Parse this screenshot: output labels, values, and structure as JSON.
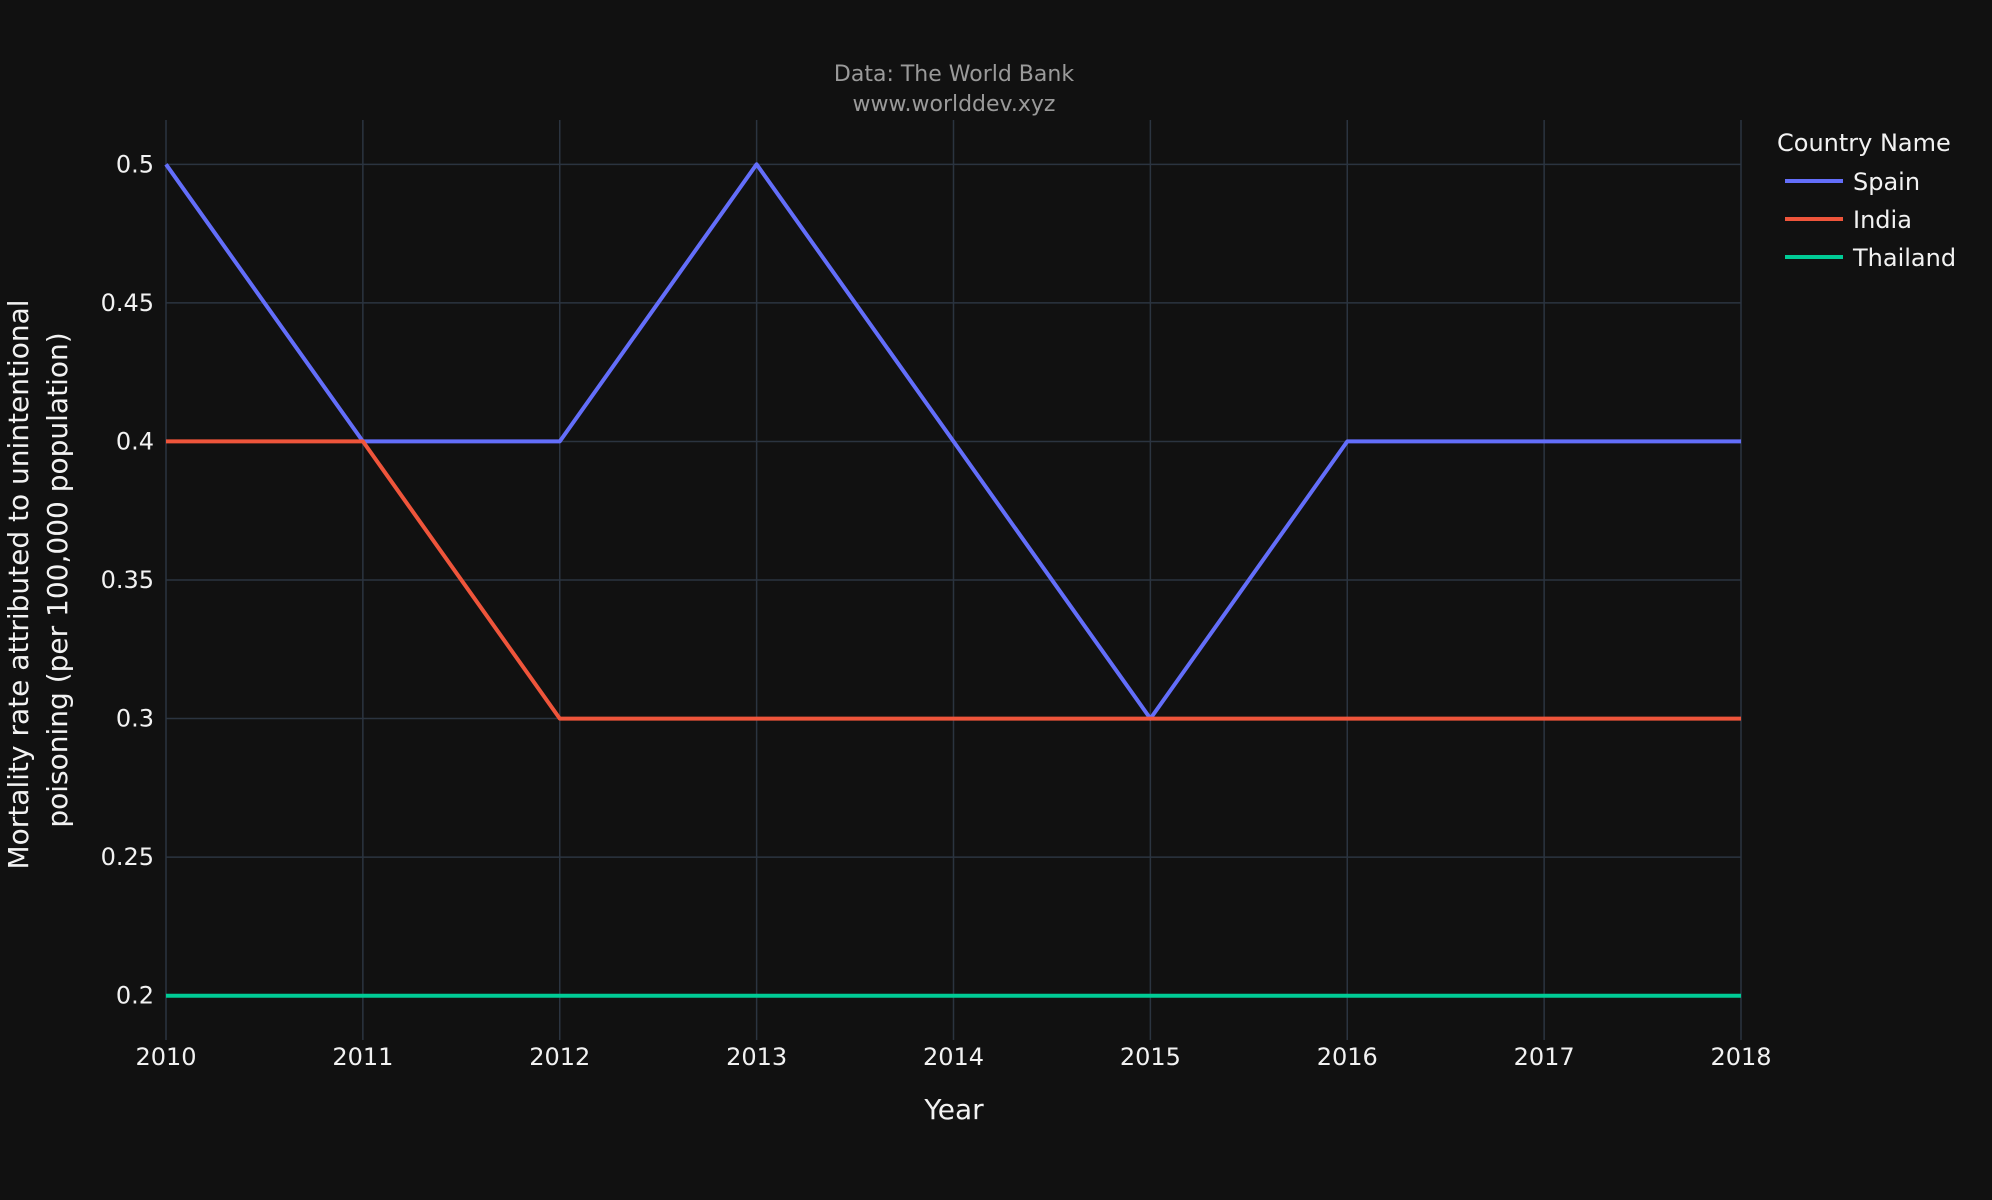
{
  "source": {
    "line1": "Data: The World Bank",
    "line2": "www.worlddev.xyz"
  },
  "chart_data": {
    "type": "line",
    "xlabel": "Year",
    "ylabel_lines": [
      "Mortality rate attributed to unintentional",
      "poisoning (per 100,000 population)"
    ],
    "x": [
      2010,
      2011,
      2012,
      2013,
      2014,
      2015,
      2016,
      2017,
      2018
    ],
    "x_ticks": [
      "2010",
      "2011",
      "2012",
      "2013",
      "2014",
      "2015",
      "2016",
      "2017",
      "2018"
    ],
    "y_ticks": [
      "0.2",
      "0.25",
      "0.3",
      "0.35",
      "0.4",
      "0.45",
      "0.5"
    ],
    "y_tick_values": [
      0.2,
      0.25,
      0.3,
      0.35,
      0.4,
      0.45,
      0.5
    ],
    "xlim": [
      2010,
      2018
    ],
    "ylim": [
      0.184,
      0.516
    ],
    "grid": true,
    "legend_title": "Country Name",
    "legend_position": "top-right, outside plot",
    "series": [
      {
        "name": "Spain",
        "color": "#636efa",
        "values": [
          0.5,
          0.4,
          0.4,
          0.5,
          0.4,
          0.3,
          0.4,
          0.4,
          0.4
        ]
      },
      {
        "name": "India",
        "color": "#ef553b",
        "values": [
          0.4,
          0.4,
          0.3,
          0.3,
          0.3,
          0.3,
          0.3,
          0.3,
          0.3
        ]
      },
      {
        "name": "Thailand",
        "color": "#00cc96",
        "values": [
          0.2,
          0.2,
          0.2,
          0.2,
          0.2,
          0.2,
          0.2,
          0.2,
          0.2
        ]
      }
    ]
  }
}
